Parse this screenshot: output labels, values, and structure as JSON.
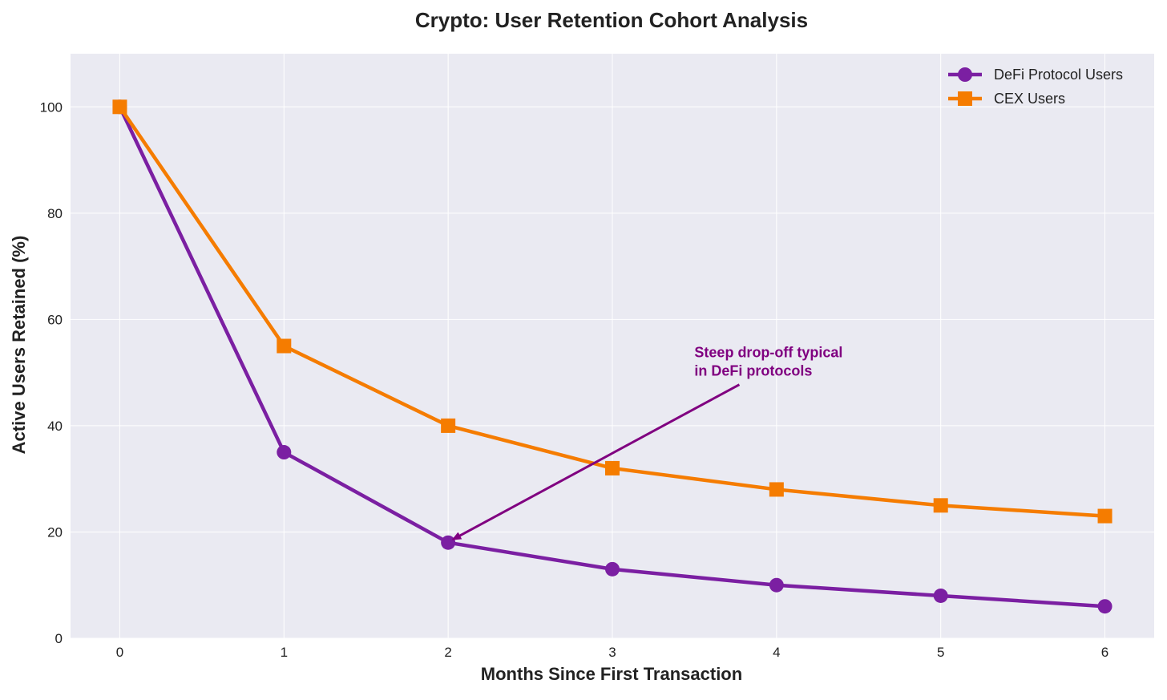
{
  "chart_data": {
    "type": "line",
    "title": "Crypto: User Retention Cohort Analysis",
    "xlabel": "Months Since First Transaction",
    "ylabel": "Active Users Retained (%)",
    "x": [
      0,
      1,
      2,
      3,
      4,
      5,
      6
    ],
    "xlim": [
      -0.3,
      6.3
    ],
    "ylim": [
      0,
      110
    ],
    "xticks": [
      0,
      1,
      2,
      3,
      4,
      5,
      6
    ],
    "yticks": [
      0,
      20,
      40,
      60,
      80,
      100
    ],
    "grid": true,
    "legend_position": "top-right",
    "series": [
      {
        "name": "DeFi Protocol Users",
        "values": [
          100,
          35,
          18,
          13,
          10,
          8,
          6
        ],
        "color": "#7b1fa2",
        "marker": "circle"
      },
      {
        "name": "CEX Users",
        "values": [
          100,
          55,
          40,
          32,
          28,
          25,
          23
        ],
        "color": "#f57c00",
        "marker": "square"
      }
    ],
    "annotation": {
      "lines": [
        "Steep drop-off typical",
        "in DeFi protocols"
      ],
      "text_at": [
        3.5,
        50
      ],
      "arrow_target": [
        2,
        18
      ],
      "color": "#800080"
    },
    "background_color": "#eaeaf2"
  }
}
